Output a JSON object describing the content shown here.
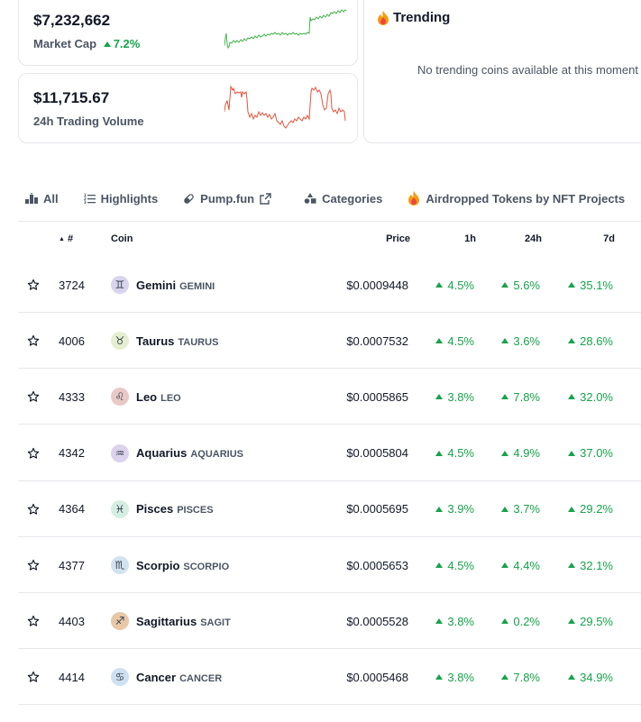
{
  "market_cap": {
    "value": "$7,232,662",
    "label": "Market Cap",
    "change": "7.2%"
  },
  "volume": {
    "value": "$11,715.67",
    "label": "24h Trading Volume"
  },
  "trending": {
    "title": "Trending",
    "empty_text": "No trending coins available at this moment"
  },
  "tabs": [
    {
      "label": "All",
      "icon": "podium-icon"
    },
    {
      "label": "Highlights",
      "icon": "list-icon"
    },
    {
      "label": "Pump.fun",
      "icon": "pill-icon",
      "external": true
    },
    {
      "label": "Categories",
      "icon": "shapes-icon"
    },
    {
      "label": "Airdropped Tokens by NFT Projects",
      "icon": "fire-icon"
    }
  ],
  "table": {
    "headers": {
      "rank": "#",
      "coin": "Coin",
      "price": "Price",
      "h1": "1h",
      "h24": "24h",
      "d7": "7d"
    },
    "rows": [
      {
        "rank": "3724",
        "name": "Gemini",
        "symbol": "GEMINI",
        "glyph": "♊",
        "price": "$0.0009448",
        "h1": "4.5%",
        "h24": "5.6%",
        "d7": "35.1%",
        "color": "#d9d4ee"
      },
      {
        "rank": "4006",
        "name": "Taurus",
        "symbol": "TAURUS",
        "glyph": "♉",
        "price": "$0.0007532",
        "h1": "4.5%",
        "h24": "3.6%",
        "d7": "28.6%",
        "color": "#e6eed1"
      },
      {
        "rank": "4333",
        "name": "Leo",
        "symbol": "LEO",
        "glyph": "♌",
        "price": "$0.0005865",
        "h1": "3.8%",
        "h24": "7.8%",
        "d7": "32.0%",
        "color": "#e8c9c6"
      },
      {
        "rank": "4342",
        "name": "Aquarius",
        "symbol": "AQUARIUS",
        "glyph": "♒",
        "price": "$0.0005804",
        "h1": "4.5%",
        "h24": "4.9%",
        "d7": "37.0%",
        "color": "#dcd2ec"
      },
      {
        "rank": "4364",
        "name": "Pisces",
        "symbol": "PISCES",
        "glyph": "♓",
        "price": "$0.0005695",
        "h1": "3.9%",
        "h24": "3.7%",
        "d7": "29.2%",
        "color": "#d5eee3"
      },
      {
        "rank": "4377",
        "name": "Scorpio",
        "symbol": "SCORPIO",
        "glyph": "♏",
        "price": "$0.0005653",
        "h1": "4.5%",
        "h24": "4.4%",
        "d7": "32.1%",
        "color": "#d3e2ef"
      },
      {
        "rank": "4403",
        "name": "Sagittarius",
        "symbol": "SAGIT",
        "glyph": "♐",
        "price": "$0.0005528",
        "h1": "3.8%",
        "h24": "0.2%",
        "d7": "29.5%",
        "color": "#e8c8a6"
      },
      {
        "rank": "4414",
        "name": "Cancer",
        "symbol": "CANCER",
        "glyph": "♋",
        "price": "$0.0005468",
        "h1": "3.8%",
        "h24": "7.8%",
        "d7": "34.9%",
        "color": "#cfe1f1"
      }
    ]
  },
  "colors": {
    "up": "#16a34a",
    "down": "#e5533d",
    "border": "#e5e7eb"
  }
}
